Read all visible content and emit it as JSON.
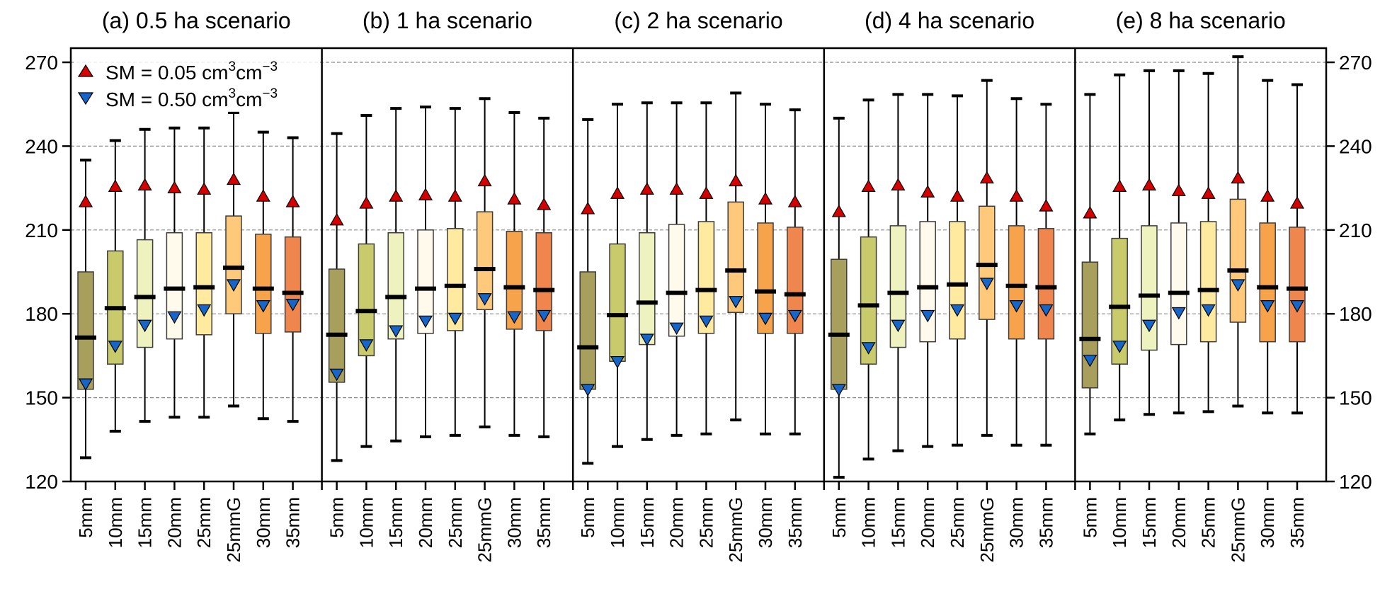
{
  "chart_data": {
    "type": "boxplot",
    "ylim": [
      120,
      275
    ],
    "yticks": [
      120,
      150,
      180,
      210,
      240,
      270
    ],
    "grid": true,
    "legend_position": "top-left",
    "legend": [
      {
        "label_pre": "SM = 0.05 cm",
        "sup1": "3",
        "mid": "cm",
        "sup2": "−3",
        "marker": "triangle-up",
        "color": "#d40000"
      },
      {
        "label_pre": "SM = 0.50 cm",
        "sup1": "3",
        "mid": "cm",
        "sup2": "−3",
        "marker": "triangle-down",
        "color": "#1566c8"
      }
    ],
    "categories": [
      "5mm",
      "10mm",
      "15mm",
      "20mm",
      "25mm",
      "25mmG",
      "30mm",
      "35mm"
    ],
    "box_colors": [
      "#a89f5c",
      "#c8ca6c",
      "#eef2bf",
      "#fffaeb",
      "#ffeaa0",
      "#ffc97c",
      "#f6a34b",
      "#ee864e"
    ],
    "panels": [
      {
        "title": "(a) 0.5 ha scenario",
        "boxes": [
          {
            "whislo": 128.5,
            "q1": 153,
            "med": 171.5,
            "q3": 195,
            "whishi": 235,
            "sm005": 220,
            "sm050": 155
          },
          {
            "whislo": 138,
            "q1": 162,
            "med": 182,
            "q3": 202.5,
            "whishi": 242,
            "sm005": 225.5,
            "sm050": 168.5
          },
          {
            "whislo": 141.5,
            "q1": 168,
            "med": 186,
            "q3": 206.5,
            "whishi": 246,
            "sm005": 226,
            "sm050": 176
          },
          {
            "whislo": 143,
            "q1": 171,
            "med": 189,
            "q3": 209,
            "whishi": 246.5,
            "sm005": 225,
            "sm050": 179
          },
          {
            "whislo": 143,
            "q1": 172.5,
            "med": 189.5,
            "q3": 209,
            "whishi": 246.5,
            "sm005": 224.5,
            "sm050": 181.5
          },
          {
            "whislo": 147,
            "q1": 180,
            "med": 196.5,
            "q3": 215,
            "whishi": 252,
            "sm005": 228,
            "sm050": 190.5
          },
          {
            "whislo": 142.5,
            "q1": 173,
            "med": 189,
            "q3": 208.5,
            "whishi": 245,
            "sm005": 222,
            "sm050": 183
          },
          {
            "whislo": 141.5,
            "q1": 173.5,
            "med": 187.5,
            "q3": 207.5,
            "whishi": 243,
            "sm005": 220,
            "sm050": 183.5
          }
        ]
      },
      {
        "title": "(b) 1 ha scenario",
        "boxes": [
          {
            "whislo": 127.5,
            "q1": 155.5,
            "med": 172.5,
            "q3": 196,
            "whishi": 244.5,
            "sm005": 213.5,
            "sm050": 158.5
          },
          {
            "whislo": 132.5,
            "q1": 165,
            "med": 181,
            "q3": 205,
            "whishi": 251,
            "sm005": 219.5,
            "sm050": 169
          },
          {
            "whislo": 134.5,
            "q1": 171,
            "med": 186,
            "q3": 209,
            "whishi": 253.5,
            "sm005": 222,
            "sm050": 174
          },
          {
            "whislo": 136,
            "q1": 173,
            "med": 189,
            "q3": 210,
            "whishi": 254,
            "sm005": 222.5,
            "sm050": 177.5
          },
          {
            "whislo": 136.5,
            "q1": 174,
            "med": 190,
            "q3": 210.5,
            "whishi": 253.5,
            "sm005": 222,
            "sm050": 178.5
          },
          {
            "whislo": 139.5,
            "q1": 181.5,
            "med": 196,
            "q3": 216.5,
            "whishi": 257,
            "sm005": 227.5,
            "sm050": 185.5
          },
          {
            "whislo": 136.5,
            "q1": 174.5,
            "med": 189.5,
            "q3": 209.5,
            "whishi": 252,
            "sm005": 221,
            "sm050": 179
          },
          {
            "whislo": 136,
            "q1": 174,
            "med": 188.5,
            "q3": 209,
            "whishi": 250,
            "sm005": 219,
            "sm050": 179.5
          }
        ]
      },
      {
        "title": "(c) 2 ha scenario",
        "boxes": [
          {
            "whislo": 126.5,
            "q1": 153,
            "med": 168,
            "q3": 195,
            "whishi": 249.5,
            "sm005": 217.5,
            "sm050": 153
          },
          {
            "whislo": 132.5,
            "q1": 163,
            "med": 179.5,
            "q3": 205,
            "whishi": 255,
            "sm005": 223,
            "sm050": 163
          },
          {
            "whislo": 135,
            "q1": 169,
            "med": 184,
            "q3": 209,
            "whishi": 255.5,
            "sm005": 224.5,
            "sm050": 171
          },
          {
            "whislo": 136.5,
            "q1": 172,
            "med": 187.5,
            "q3": 212,
            "whishi": 255.5,
            "sm005": 224.5,
            "sm050": 175
          },
          {
            "whislo": 137,
            "q1": 173,
            "med": 188.5,
            "q3": 213,
            "whishi": 255.5,
            "sm005": 223,
            "sm050": 177.5
          },
          {
            "whislo": 142,
            "q1": 180.5,
            "med": 195.5,
            "q3": 220,
            "whishi": 259,
            "sm005": 227.5,
            "sm050": 184.5
          },
          {
            "whislo": 137,
            "q1": 173,
            "med": 188,
            "q3": 212.5,
            "whishi": 255,
            "sm005": 221,
            "sm050": 178.5
          },
          {
            "whislo": 137,
            "q1": 173,
            "med": 187,
            "q3": 211,
            "whishi": 253,
            "sm005": 220,
            "sm050": 179.5
          }
        ]
      },
      {
        "title": "(d) 4 ha scenario",
        "boxes": [
          {
            "whislo": 121.5,
            "q1": 153,
            "med": 172.5,
            "q3": 199.5,
            "whishi": 250,
            "sm005": 216.5,
            "sm050": 153
          },
          {
            "whislo": 128,
            "q1": 162,
            "med": 183,
            "q3": 207.5,
            "whishi": 256.5,
            "sm005": 225.5,
            "sm050": 168
          },
          {
            "whislo": 131,
            "q1": 168,
            "med": 187.5,
            "q3": 211.5,
            "whishi": 258.5,
            "sm005": 226,
            "sm050": 176
          },
          {
            "whislo": 132.5,
            "q1": 170,
            "med": 189.5,
            "q3": 213,
            "whishi": 258.5,
            "sm005": 223.5,
            "sm050": 179.5
          },
          {
            "whislo": 133,
            "q1": 171,
            "med": 190.5,
            "q3": 213,
            "whishi": 258,
            "sm005": 222,
            "sm050": 181.5
          },
          {
            "whislo": 136.5,
            "q1": 178,
            "med": 197.5,
            "q3": 218.5,
            "whishi": 263.5,
            "sm005": 228.5,
            "sm050": 191
          },
          {
            "whislo": 133,
            "q1": 171,
            "med": 190,
            "q3": 211.5,
            "whishi": 257,
            "sm005": 222,
            "sm050": 183
          },
          {
            "whislo": 133,
            "q1": 171,
            "med": 189.5,
            "q3": 210.5,
            "whishi": 255,
            "sm005": 218.5,
            "sm050": 181.5
          }
        ]
      },
      {
        "title": "(e) 8 ha scenario",
        "boxes": [
          {
            "whislo": 137,
            "q1": 153.5,
            "med": 171,
            "q3": 198.5,
            "whishi": 258.5,
            "sm005": 216,
            "sm050": 163.5
          },
          {
            "whislo": 142,
            "q1": 162,
            "med": 182.5,
            "q3": 207,
            "whishi": 265.5,
            "sm005": 225.5,
            "sm050": 168.5
          },
          {
            "whislo": 144,
            "q1": 167,
            "med": 186.5,
            "q3": 211.5,
            "whishi": 267,
            "sm005": 226,
            "sm050": 176
          },
          {
            "whislo": 144.5,
            "q1": 169,
            "med": 187.5,
            "q3": 212.5,
            "whishi": 267,
            "sm005": 224,
            "sm050": 180.5
          },
          {
            "whislo": 145,
            "q1": 170,
            "med": 188.5,
            "q3": 213,
            "whishi": 266,
            "sm005": 223,
            "sm050": 181.5
          },
          {
            "whislo": 147,
            "q1": 177,
            "med": 195.5,
            "q3": 221,
            "whishi": 272,
            "sm005": 228.5,
            "sm050": 190.5
          },
          {
            "whislo": 144.5,
            "q1": 170,
            "med": 189.5,
            "q3": 212.5,
            "whishi": 263.5,
            "sm005": 222,
            "sm050": 183
          },
          {
            "whislo": 144.5,
            "q1": 170,
            "med": 189,
            "q3": 211,
            "whishi": 262,
            "sm005": 219.5,
            "sm050": 183
          }
        ]
      }
    ]
  }
}
